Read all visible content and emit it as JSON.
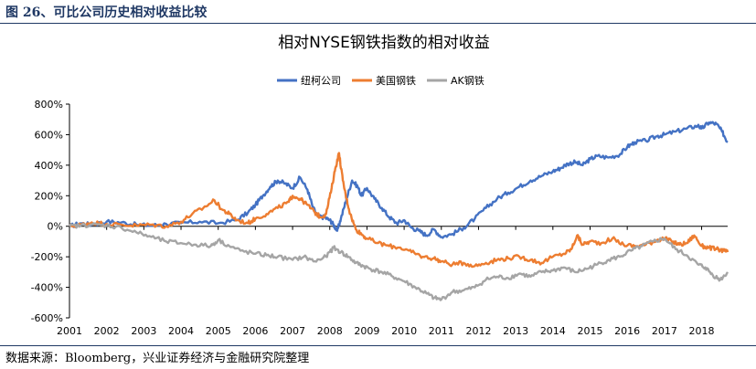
{
  "figure": {
    "caption": "图 26、可比公司历史相对收益比较",
    "source": "数据来源：Bloomberg，兴业证券经济与金融研究院整理"
  },
  "chart_data": {
    "type": "line",
    "title": "相对NYSE钢铁指数的相对收益",
    "xlabel": "",
    "ylabel": "",
    "xlim": [
      2001,
      2018.7
    ],
    "ylim": [
      -600,
      800
    ],
    "y_ticks": [
      "800%",
      "600%",
      "400%",
      "200%",
      "0%",
      "-200%",
      "-400%",
      "-600%"
    ],
    "y_tick_values": [
      800,
      600,
      400,
      200,
      0,
      -200,
      -400,
      -600
    ],
    "x_ticks": [
      "2001",
      "2002",
      "2003",
      "2004",
      "2005",
      "2006",
      "2007",
      "2008",
      "2009",
      "2010",
      "2011",
      "2012",
      "2013",
      "2014",
      "2015",
      "2016",
      "2017",
      "2018"
    ],
    "x_tick_values": [
      2001,
      2002,
      2003,
      2004,
      2005,
      2006,
      2007,
      2008,
      2009,
      2010,
      2011,
      2012,
      2013,
      2014,
      2015,
      2016,
      2017,
      2018
    ],
    "legend_position": "top-center",
    "grid": false,
    "series": [
      {
        "name": "纽柯公司",
        "color": "#4472c4",
        "x": [
          2001.0,
          2001.3,
          2001.6,
          2002.0,
          2002.4,
          2002.8,
          2003.2,
          2003.6,
          2004.0,
          2004.5,
          2005.0,
          2005.5,
          2005.8,
          2006.0,
          2006.2,
          2006.4,
          2006.6,
          2006.8,
          2007.0,
          2007.2,
          2007.4,
          2007.55,
          2007.7,
          2007.85,
          2008.0,
          2008.1,
          2008.2,
          2008.3,
          2008.45,
          2008.6,
          2008.75,
          2008.85,
          2009.0,
          2009.2,
          2009.4,
          2009.6,
          2009.8,
          2010.0,
          2010.2,
          2010.4,
          2010.6,
          2010.8,
          2011.0,
          2011.3,
          2011.6,
          2011.9,
          2012.2,
          2012.5,
          2012.8,
          2013.1,
          2013.4,
          2013.7,
          2014.0,
          2014.2,
          2014.4,
          2014.6,
          2014.8,
          2015.0,
          2015.2,
          2015.5,
          2015.8,
          2016.0,
          2016.2,
          2016.5,
          2016.8,
          2017.0,
          2017.3,
          2017.6,
          2017.9,
          2018.0,
          2018.2,
          2018.4,
          2018.55,
          2018.7
        ],
        "values": [
          0,
          20,
          10,
          30,
          25,
          10,
          5,
          15,
          20,
          30,
          20,
          40,
          90,
          140,
          200,
          260,
          300,
          280,
          250,
          320,
          240,
          120,
          60,
          60,
          40,
          10,
          -30,
          50,
          180,
          300,
          260,
          200,
          250,
          180,
          120,
          60,
          20,
          40,
          -10,
          -30,
          -60,
          -20,
          -70,
          -50,
          -10,
          50,
          120,
          180,
          220,
          260,
          300,
          330,
          360,
          380,
          410,
          420,
          400,
          440,
          460,
          450,
          470,
          520,
          550,
          560,
          590,
          600,
          620,
          640,
          660,
          640,
          680,
          670,
          620,
          550
        ]
      },
      {
        "name": "美国钢铁",
        "color": "#ed7d31",
        "x": [
          2001.0,
          2001.3,
          2001.6,
          2002.0,
          2002.4,
          2002.8,
          2003.2,
          2003.6,
          2004.0,
          2004.3,
          2004.6,
          2004.9,
          2005.1,
          2005.3,
          2005.5,
          2005.8,
          2006.0,
          2006.3,
          2006.6,
          2006.9,
          2007.0,
          2007.2,
          2007.4,
          2007.6,
          2007.75,
          2007.9,
          2008.05,
          2008.15,
          2008.25,
          2008.35,
          2008.45,
          2008.55,
          2008.7,
          2008.85,
          2009.0,
          2009.3,
          2009.6,
          2009.9,
          2010.2,
          2010.5,
          2010.8,
          2011.0,
          2011.3,
          2011.6,
          2011.9,
          2012.2,
          2012.5,
          2012.8,
          2013.1,
          2013.4,
          2013.7,
          2014.0,
          2014.3,
          2014.5,
          2014.65,
          2014.8,
          2015.0,
          2015.3,
          2015.6,
          2015.9,
          2016.2,
          2016.5,
          2016.8,
          2017.0,
          2017.2,
          2017.4,
          2017.6,
          2017.8,
          2018.0,
          2018.2,
          2018.4,
          2018.6,
          2018.7
        ],
        "values": [
          0,
          10,
          25,
          15,
          10,
          5,
          10,
          0,
          30,
          80,
          120,
          170,
          110,
          80,
          40,
          20,
          50,
          80,
          120,
          160,
          200,
          180,
          140,
          90,
          60,
          80,
          250,
          380,
          480,
          300,
          180,
          80,
          -20,
          -50,
          -80,
          -110,
          -130,
          -140,
          -170,
          -200,
          -210,
          -230,
          -250,
          -240,
          -260,
          -240,
          -220,
          -210,
          -200,
          -220,
          -240,
          -200,
          -180,
          -150,
          -60,
          -120,
          -100,
          -110,
          -80,
          -120,
          -130,
          -120,
          -90,
          -80,
          -100,
          -120,
          -110,
          -60,
          -130,
          -140,
          -150,
          -160,
          -170
        ]
      },
      {
        "name": "AK钢铁",
        "color": "#a5a5a5",
        "x": [
          2001.0,
          2001.3,
          2001.6,
          2002.0,
          2002.4,
          2002.8,
          2003.2,
          2003.6,
          2004.0,
          2004.4,
          2004.8,
          2005.0,
          2005.3,
          2005.6,
          2006.0,
          2006.3,
          2006.6,
          2007.0,
          2007.3,
          2007.6,
          2007.9,
          2008.1,
          2008.3,
          2008.5,
          2008.7,
          2008.9,
          2009.1,
          2009.4,
          2009.7,
          2010.0,
          2010.3,
          2010.6,
          2010.8,
          2011.0,
          2011.3,
          2011.6,
          2011.9,
          2012.2,
          2012.5,
          2012.8,
          2013.1,
          2013.4,
          2013.7,
          2014.0,
          2014.3,
          2014.6,
          2014.9,
          2015.2,
          2015.5,
          2015.8,
          2016.1,
          2016.4,
          2016.7,
          2017.0,
          2017.3,
          2017.6,
          2017.9,
          2018.1,
          2018.3,
          2018.5,
          2018.7
        ],
        "values": [
          0,
          5,
          10,
          5,
          -10,
          -40,
          -70,
          -100,
          -110,
          -120,
          -130,
          -90,
          -130,
          -160,
          -180,
          -190,
          -200,
          -220,
          -200,
          -230,
          -200,
          -140,
          -170,
          -200,
          -240,
          -260,
          -280,
          -300,
          -330,
          -360,
          -400,
          -440,
          -470,
          -480,
          -430,
          -420,
          -400,
          -350,
          -330,
          -340,
          -310,
          -330,
          -300,
          -290,
          -270,
          -300,
          -280,
          -250,
          -220,
          -200,
          -160,
          -130,
          -100,
          -80,
          -150,
          -190,
          -250,
          -270,
          -320,
          -350,
          -300
        ]
      }
    ]
  }
}
